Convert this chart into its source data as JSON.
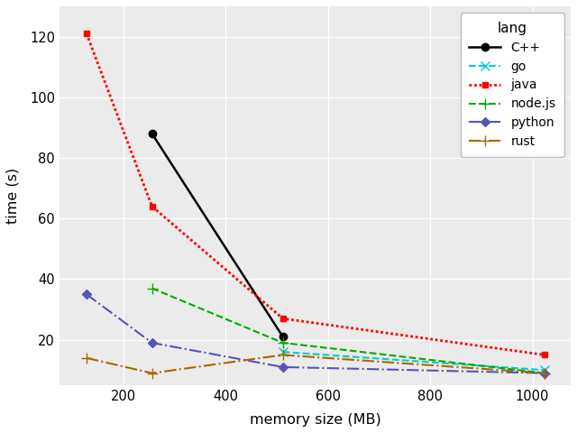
{
  "xlabel": "memory size (MB)",
  "ylabel": "time (s)",
  "xlim": [
    75,
    1075
  ],
  "ylim": [
    5,
    130
  ],
  "yticks": [
    20,
    40,
    60,
    80,
    100,
    120
  ],
  "xticks": [
    200,
    400,
    600,
    800,
    1000
  ],
  "panel_bg": "#EBEBEB",
  "grid_color": "#FFFFFF",
  "series": {
    "C++": {
      "x": [
        256,
        512
      ],
      "y": [
        88,
        21
      ],
      "color": "#000000",
      "linestyle": "-",
      "marker": "o",
      "markersize": 6,
      "linewidth": 1.8,
      "markerfacecolor": "#000000"
    },
    "go": {
      "x": [
        128,
        256,
        512,
        1024
      ],
      "y": [
        null,
        null,
        16,
        10
      ],
      "color": "#00CCCC",
      "linestyle": "--",
      "marker": "x",
      "markersize": 7,
      "linewidth": 1.5,
      "markerfacecolor": "#00CCCC"
    },
    "java": {
      "x": [
        128,
        256,
        512,
        1024
      ],
      "y": [
        121,
        64,
        27,
        15
      ],
      "color": "#FF0000",
      "linestyle": "dotted",
      "marker": "s",
      "markersize": 5,
      "linewidth": 2.0,
      "markerfacecolor": "#FF0000"
    },
    "node.js": {
      "x": [
        256,
        512,
        1024
      ],
      "y": [
        37,
        19,
        9
      ],
      "color": "#00AA00",
      "linestyle": "--",
      "marker": "+",
      "markersize": 8,
      "linewidth": 1.5,
      "markerfacecolor": "#00AA00"
    },
    "python": {
      "x": [
        128,
        256,
        512,
        1024
      ],
      "y": [
        35,
        19,
        11,
        9
      ],
      "color": "#5555BB",
      "linestyle": "-.",
      "marker": "D",
      "markersize": 5,
      "linewidth": 1.5,
      "markerfacecolor": "#5555BB"
    },
    "rust": {
      "x": [
        128,
        256,
        512,
        1024
      ],
      "y": [
        14,
        9,
        15,
        9
      ],
      "color": "#AA6600",
      "linestyle": "-.",
      "marker": "+",
      "markersize": 8,
      "linewidth": 1.5,
      "markerfacecolor": "#AA6600"
    }
  },
  "legend_title": "lang",
  "legend_order": [
    "C++",
    "go",
    "java",
    "node.js",
    "python",
    "rust"
  ]
}
